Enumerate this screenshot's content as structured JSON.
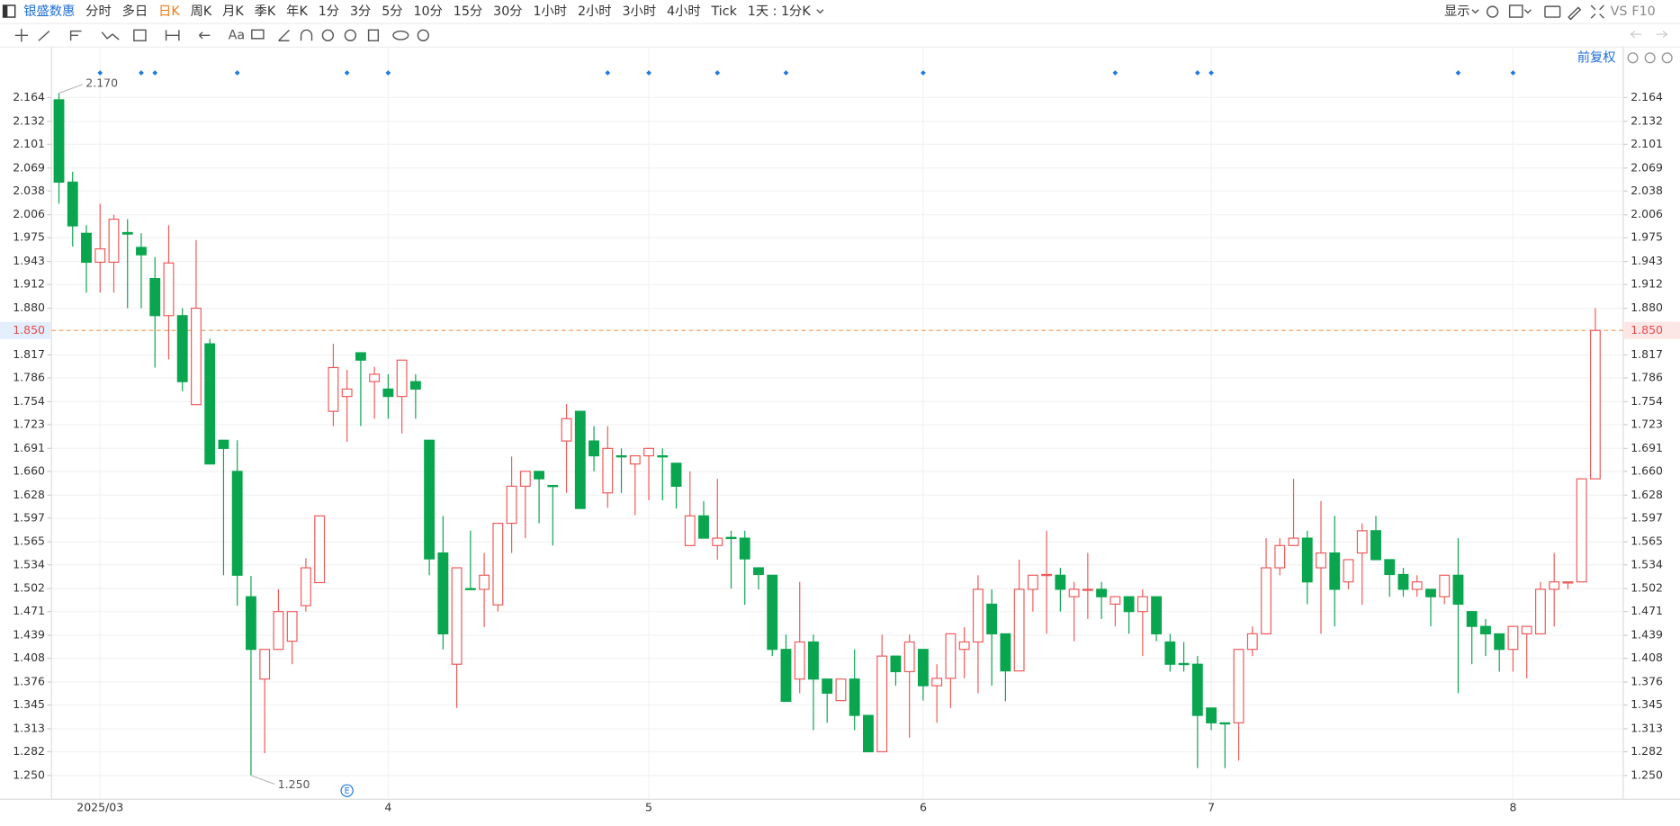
{
  "toolbar": {
    "brand": "银盛数惠",
    "periods": [
      "分时",
      "多日",
      "日K",
      "周K",
      "月K",
      "季K",
      "年K",
      "1分",
      "3分",
      "5分",
      "10分",
      "15分",
      "30分",
      "1小时",
      "2小时",
      "3小时",
      "4小时",
      "Tick",
      "1天 : 1分K"
    ],
    "active_period": 2,
    "display": "显示",
    "vs": "VS",
    "f10": "F10",
    "font_tool": "Aa",
    "price_adjust": "前复权"
  },
  "chart_data": {
    "type": "candlestick",
    "categories": [
      null,
      null,
      null,
      "2025/03",
      null,
      null,
      null,
      null,
      null,
      null,
      null,
      null,
      null,
      null,
      null,
      null,
      null,
      null,
      null,
      null,
      null,
      null,
      null,
      null,
      "4",
      null,
      null,
      null,
      null,
      null,
      null,
      null,
      null,
      null,
      null,
      null,
      null,
      null,
      null,
      null,
      null,
      null,
      null,
      "5",
      null,
      null,
      null,
      null,
      null,
      null,
      null,
      null,
      null,
      null,
      null,
      null,
      null,
      null,
      null,
      null,
      null,
      null,
      null,
      "6",
      null,
      null,
      null,
      null,
      null,
      null,
      null,
      null,
      null,
      null,
      null,
      null,
      null,
      null,
      null,
      null,
      null,
      null,
      null,
      null,
      "7",
      null,
      null,
      null,
      null,
      null,
      null,
      null,
      null,
      null,
      null,
      null,
      null,
      null,
      null,
      null,
      null,
      null,
      null,
      null,
      null,
      null,
      "8",
      null,
      null,
      null,
      null,
      null,
      null
    ],
    "open": [
      2.161,
      2.05,
      1.981,
      1.942,
      1.942,
      1.982,
      1.962,
      1.92,
      1.87,
      1.87,
      1.75,
      1.832,
      1.702,
      1.66,
      1.491,
      1.38,
      1.42,
      1.431,
      1.479,
      1.51,
      1.741,
      1.761,
      1.82,
      1.781,
      1.771,
      1.761,
      1.781,
      1.702,
      1.55,
      1.4,
      1.502,
      1.501,
      1.48,
      1.59,
      1.64,
      1.66,
      1.641,
      1.701,
      1.741,
      1.701,
      1.631,
      1.681,
      1.67,
      1.681,
      1.681,
      1.671,
      1.56,
      1.6,
      1.56,
      1.571,
      1.57,
      1.53,
      1.52,
      1.42,
      1.38,
      1.43,
      1.38,
      1.351,
      1.38,
      1.331,
      1.282,
      1.411,
      1.39,
      1.42,
      1.371,
      1.381,
      1.42,
      1.43,
      1.481,
      1.441,
      1.391,
      1.501,
      1.52,
      1.52,
      1.491,
      1.5,
      1.501,
      1.481,
      1.491,
      1.471,
      1.491,
      1.43,
      1.401,
      1.4,
      1.341,
      1.321,
      1.321,
      1.42,
      1.441,
      1.53,
      1.56,
      1.57,
      1.53,
      1.55,
      1.511,
      1.55,
      1.58,
      1.541,
      1.521,
      1.501,
      1.501,
      1.491,
      1.52,
      1.471,
      1.451,
      1.441,
      1.42,
      1.441,
      1.441,
      1.501,
      1.51,
      1.511,
      1.65
    ],
    "high": [
      2.17,
      2.064,
      1.992,
      2.021,
      2.006,
      2.0,
      1.981,
      1.949,
      1.992,
      1.88,
      1.972,
      1.839,
      1.702,
      1.702,
      1.519,
      1.42,
      1.501,
      1.471,
      1.543,
      1.6,
      1.832,
      1.797,
      1.82,
      1.801,
      1.791,
      1.81,
      1.791,
      1.702,
      1.6,
      1.53,
      1.58,
      1.55,
      1.59,
      1.68,
      1.66,
      1.66,
      1.641,
      1.751,
      1.741,
      1.721,
      1.721,
      1.691,
      1.681,
      1.691,
      1.691,
      1.671,
      1.66,
      1.62,
      1.65,
      1.58,
      1.58,
      1.53,
      1.52,
      1.44,
      1.511,
      1.44,
      1.38,
      1.38,
      1.42,
      1.331,
      1.44,
      1.411,
      1.44,
      1.42,
      1.4,
      1.441,
      1.45,
      1.52,
      1.501,
      1.441,
      1.541,
      1.52,
      1.58,
      1.53,
      1.511,
      1.55,
      1.511,
      1.491,
      1.491,
      1.501,
      1.491,
      1.441,
      1.43,
      1.411,
      1.341,
      1.321,
      1.42,
      1.451,
      1.57,
      1.57,
      1.65,
      1.58,
      1.62,
      1.6,
      1.541,
      1.59,
      1.6,
      1.541,
      1.53,
      1.52,
      1.501,
      1.52,
      1.57,
      1.471,
      1.461,
      1.441,
      1.451,
      1.451,
      1.511,
      1.55,
      1.511,
      1.65,
      1.88
    ],
    "low": [
      2.021,
      1.963,
      1.901,
      1.901,
      1.901,
      1.88,
      1.88,
      1.8,
      1.811,
      1.768,
      1.75,
      1.67,
      1.52,
      1.479,
      1.25,
      1.28,
      1.42,
      1.4,
      1.471,
      1.51,
      1.721,
      1.7,
      1.721,
      1.731,
      1.731,
      1.711,
      1.731,
      1.52,
      1.42,
      1.341,
      1.501,
      1.45,
      1.471,
      1.55,
      1.57,
      1.59,
      1.56,
      1.631,
      1.61,
      1.66,
      1.611,
      1.631,
      1.601,
      1.621,
      1.621,
      1.61,
      1.56,
      1.57,
      1.541,
      1.502,
      1.48,
      1.501,
      1.411,
      1.35,
      1.361,
      1.311,
      1.321,
      1.351,
      1.311,
      1.282,
      1.282,
      1.371,
      1.301,
      1.351,
      1.321,
      1.341,
      1.381,
      1.361,
      1.371,
      1.35,
      1.391,
      1.471,
      1.441,
      1.471,
      1.431,
      1.461,
      1.461,
      1.451,
      1.441,
      1.411,
      1.431,
      1.39,
      1.39,
      1.26,
      1.311,
      1.26,
      1.27,
      1.411,
      1.441,
      1.52,
      1.56,
      1.481,
      1.441,
      1.451,
      1.501,
      1.48,
      1.541,
      1.491,
      1.491,
      1.491,
      1.451,
      1.481,
      1.361,
      1.4,
      1.411,
      1.39,
      1.39,
      1.381,
      1.441,
      1.451,
      1.501,
      1.511,
      1.65
    ],
    "close": [
      2.05,
      1.991,
      1.942,
      1.96,
      2.0,
      1.98,
      1.952,
      1.87,
      1.941,
      1.781,
      1.88,
      1.67,
      1.691,
      1.52,
      1.42,
      1.42,
      1.471,
      1.471,
      1.53,
      1.6,
      1.8,
      1.771,
      1.81,
      1.791,
      1.761,
      1.81,
      1.771,
      1.542,
      1.441,
      1.53,
      1.501,
      1.52,
      1.59,
      1.64,
      1.66,
      1.65,
      1.64,
      1.731,
      1.61,
      1.681,
      1.691,
      1.68,
      1.681,
      1.691,
      1.68,
      1.64,
      1.6,
      1.57,
      1.57,
      1.57,
      1.542,
      1.521,
      1.42,
      1.35,
      1.43,
      1.38,
      1.361,
      1.38,
      1.331,
      1.282,
      1.411,
      1.39,
      1.43,
      1.371,
      1.381,
      1.441,
      1.43,
      1.501,
      1.441,
      1.391,
      1.501,
      1.52,
      1.521,
      1.501,
      1.501,
      1.501,
      1.491,
      1.491,
      1.471,
      1.491,
      1.441,
      1.4,
      1.4,
      1.331,
      1.321,
      1.32,
      1.42,
      1.441,
      1.53,
      1.56,
      1.57,
      1.511,
      1.55,
      1.501,
      1.541,
      1.58,
      1.541,
      1.521,
      1.501,
      1.511,
      1.491,
      1.52,
      1.481,
      1.451,
      1.441,
      1.42,
      1.451,
      1.451,
      1.501,
      1.511,
      1.511,
      1.65,
      1.85
    ],
    "up_color": "#ef5a5a",
    "down_color": "#0aa64f",
    "ylim": [
      1.218,
      2.232
    ],
    "yticks": [
      {
        "value": 1.25,
        "label": "1.250"
      },
      1.282,
      1.313,
      1.345,
      1.376,
      1.408,
      1.439,
      1.471,
      1.502,
      1.534,
      1.565,
      1.597,
      1.628,
      {
        "value": 1.66,
        "label": "1.660"
      },
      1.691,
      1.723,
      1.754,
      1.786,
      1.817,
      {
        "value": 1.88,
        "label": "1.880"
      },
      1.912,
      1.943,
      1.975,
      2.006,
      2.038,
      2.069,
      2.101,
      2.132,
      2.164
    ],
    "grid": true,
    "last_price": {
      "value": 1.85,
      "label": "1.850"
    },
    "max_label": "2.170",
    "min_label": "1.250",
    "event_dots": [
      3,
      6,
      7,
      13,
      21,
      24,
      40,
      43,
      48,
      53,
      63,
      77,
      83,
      84,
      102,
      106
    ],
    "event_badge": {
      "index": 21,
      "label": "E"
    }
  }
}
